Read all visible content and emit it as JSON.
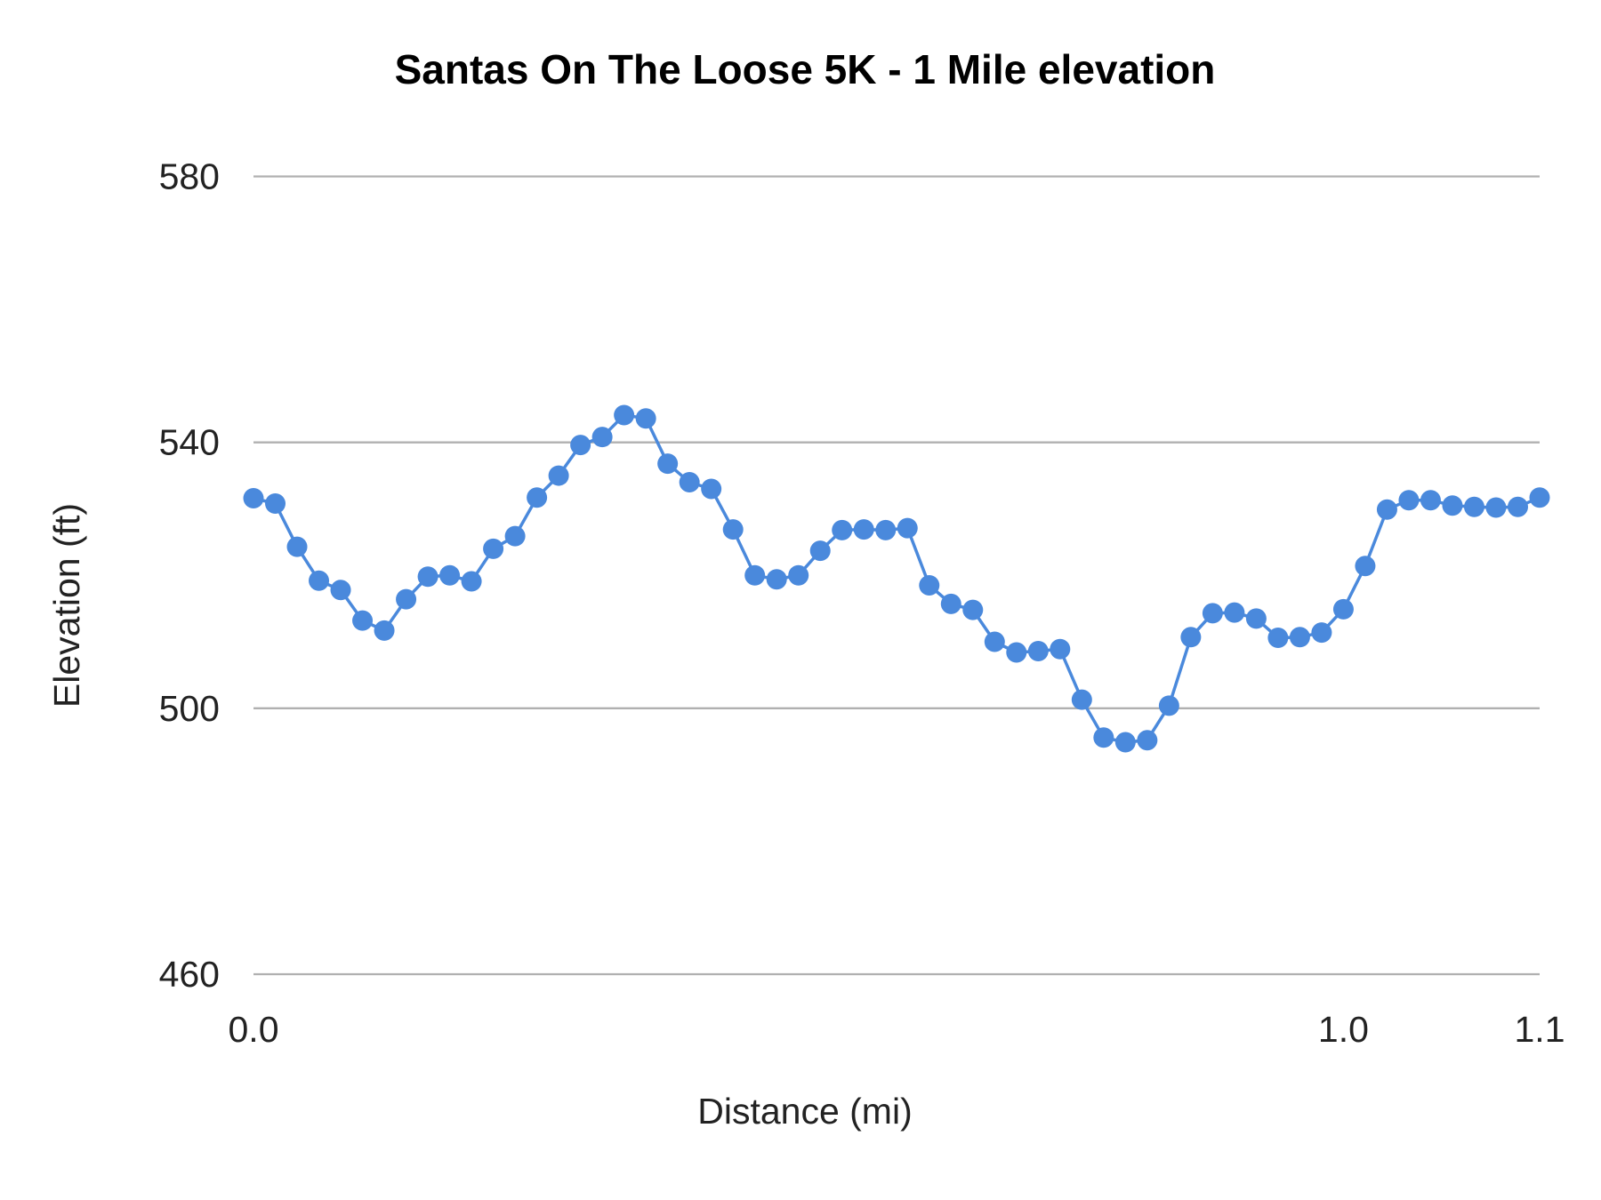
{
  "chart_data": {
    "type": "line",
    "title": "Santas On The Loose 5K - 1 Mile elevation",
    "xlabel": "Distance (mi)",
    "ylabel": "Elevation (ft)",
    "ylim": [
      460,
      580
    ],
    "yticks": [
      "460",
      "500",
      "540",
      "580"
    ],
    "x_tick_labels": [
      {
        "index": 0,
        "label": "0.0"
      },
      {
        "index": 50,
        "label": "1.0"
      },
      {
        "index": 59,
        "label": "1.1"
      }
    ],
    "grid": true,
    "legend": "none",
    "markers": true,
    "color": "#4a89dc",
    "series": [
      {
        "values": [
          531.6,
          530.8,
          524.3,
          519.2,
          517.8,
          513.2,
          511.7,
          516.4,
          519.8,
          520.0,
          519.1,
          524.0,
          525.9,
          531.7,
          535.0,
          539.6,
          540.8,
          544.1,
          543.6,
          536.8,
          534.0,
          533.0,
          526.9,
          520.0,
          519.4,
          520.0,
          523.7,
          526.8,
          526.9,
          526.8,
          527.1,
          518.5,
          515.7,
          514.8,
          510.0,
          508.4,
          508.6,
          508.9,
          501.3,
          495.6,
          494.9,
          495.2,
          500.4,
          510.7,
          514.3,
          514.4,
          513.5,
          510.6,
          510.7,
          511.4,
          514.9,
          521.4,
          529.9,
          531.3,
          531.3,
          530.5,
          530.3,
          530.2,
          530.3,
          531.7
        ]
      }
    ]
  }
}
